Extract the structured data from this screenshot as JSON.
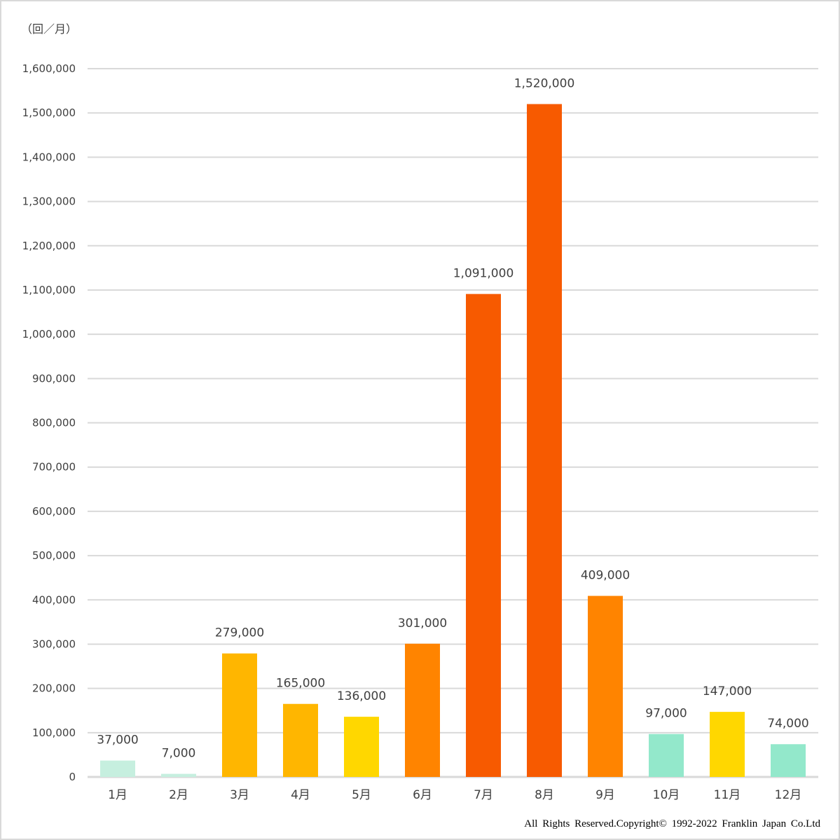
{
  "chart_data": {
    "type": "bar",
    "unit_label": "（回／月）",
    "categories": [
      "1月",
      "2月",
      "3月",
      "4月",
      "5月",
      "6月",
      "7月",
      "8月",
      "9月",
      "10月",
      "11月",
      "12月"
    ],
    "values": [
      37000,
      7000,
      279000,
      165000,
      136000,
      301000,
      1091000,
      1520000,
      409000,
      97000,
      147000,
      74000
    ],
    "data_labels": [
      "37,000",
      "7,000",
      "279,000",
      "165,000",
      "136,000",
      "301,000",
      "1,091,000",
      "1,520,000",
      "409,000",
      "97,000",
      "147,000",
      "74,000"
    ],
    "colors": [
      "#c6efdf",
      "#c6efdf",
      "#ffb600",
      "#ffb600",
      "#ffd700",
      "#ff8400",
      "#f75a00",
      "#f75a00",
      "#ff8400",
      "#93e8cb",
      "#ffd700",
      "#93e8cb"
    ],
    "ylim": [
      0,
      1600000
    ],
    "yticks": [
      0,
      100000,
      200000,
      300000,
      400000,
      500000,
      600000,
      700000,
      800000,
      900000,
      1000000,
      1100000,
      1200000,
      1300000,
      1400000,
      1500000,
      1600000
    ],
    "ytick_labels": [
      "0",
      "100,000",
      "200,000",
      "300,000",
      "400,000",
      "500,000",
      "600,000",
      "700,000",
      "800,000",
      "900,000",
      "1,000,000",
      "1,100,000",
      "1,200,000",
      "1,300,000",
      "1,400,000",
      "1,500,000",
      "1,600,000"
    ],
    "grid": true,
    "legend": "none"
  },
  "footer": {
    "copyright": "All Rights Reserved.Copyright©  1992-2022 Franklin Japan Co.Ltd"
  }
}
